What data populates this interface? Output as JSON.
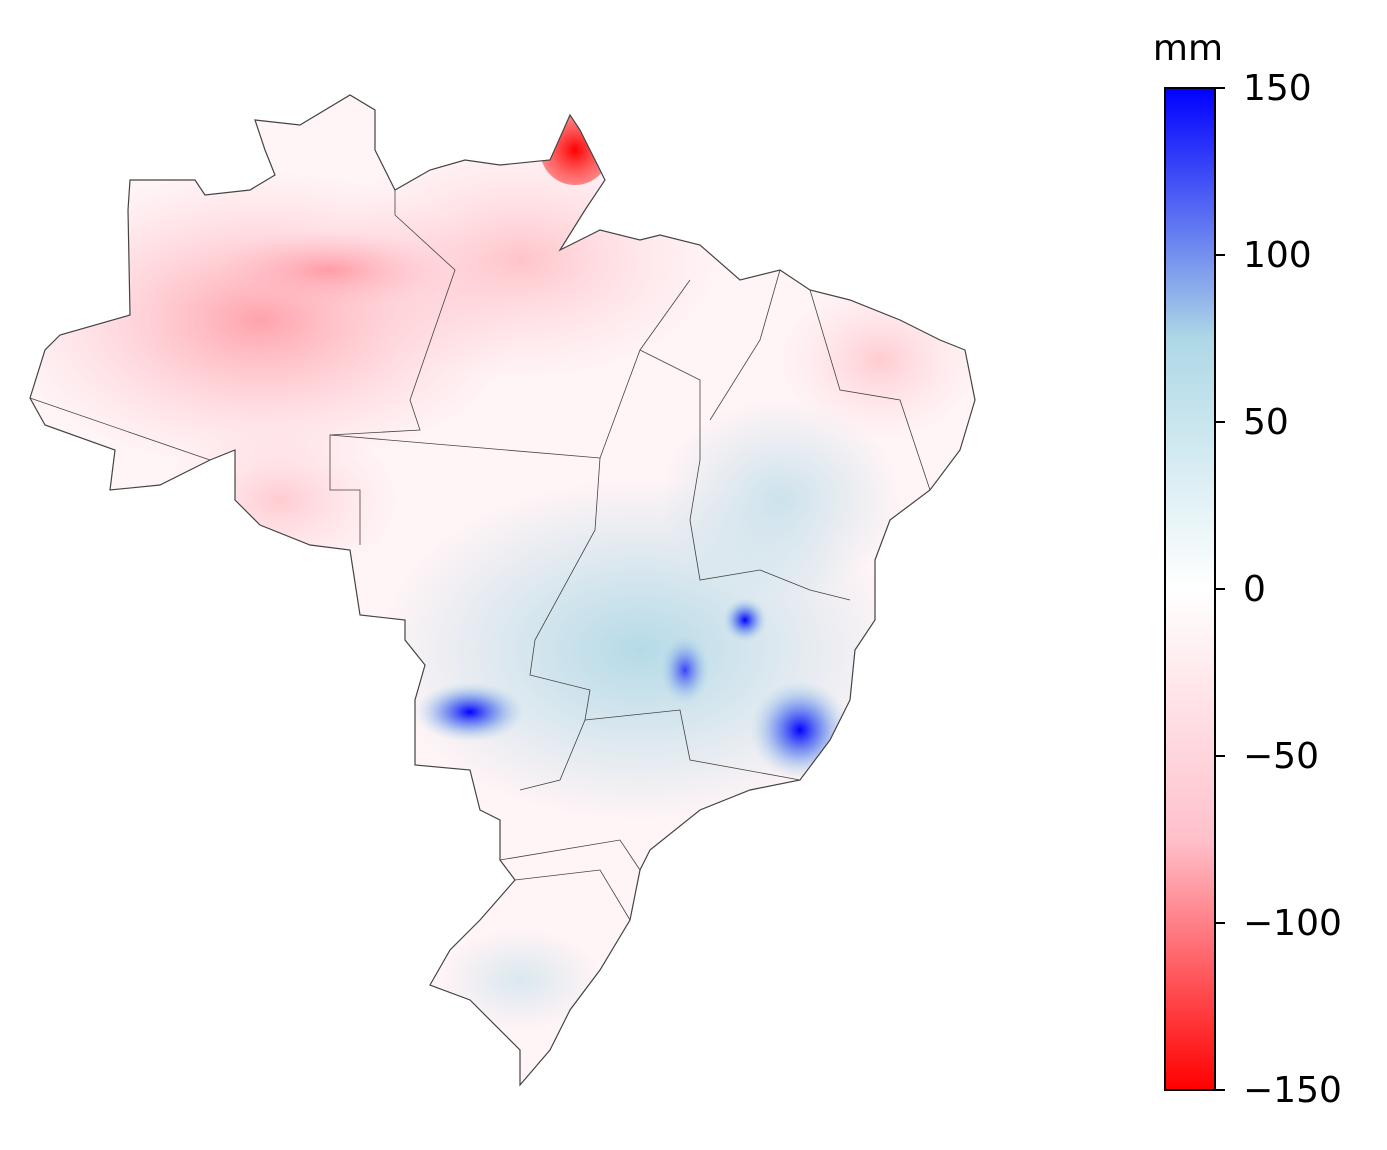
{
  "chart_data": {
    "type": "map",
    "colorbar": {
      "label": "mm",
      "lim": [
        -150,
        150
      ],
      "ticks": [
        {
          "value": 150,
          "label": "150"
        },
        {
          "value": 100,
          "label": "100"
        },
        {
          "value": 50,
          "label": "50"
        },
        {
          "value": 0,
          "label": "0"
        },
        {
          "value": -50,
          "label": "−50"
        },
        {
          "value": -100,
          "label": "−100"
        },
        {
          "value": -150,
          "label": "−150"
        }
      ],
      "colors": [
        "#ff0000",
        "#ffc0cb",
        "#ffffff",
        "#add8e6",
        "#0000ff"
      ]
    }
  }
}
